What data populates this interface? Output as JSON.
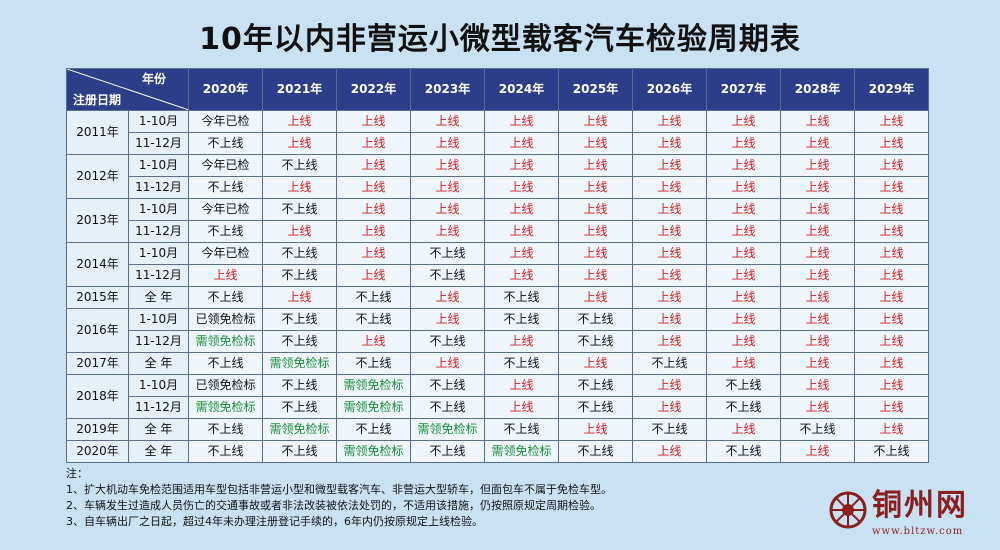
{
  "title": "10年以内非营运小微型载客汽车检验周期表",
  "corner": {
    "top": "年份",
    "bottom": "注册日期"
  },
  "years": [
    "2020年",
    "2021年",
    "2022年",
    "2023年",
    "2024年",
    "2025年",
    "2026年",
    "2027年",
    "2028年",
    "2029年"
  ],
  "rows": [
    {
      "year": "2011年",
      "month": "1-10月",
      "cells": [
        "今年已检",
        "上线",
        "上线",
        "上线",
        "上线",
        "上线",
        "上线",
        "上线",
        "上线",
        "上线"
      ],
      "colors": [
        "k",
        "r",
        "r",
        "r",
        "r",
        "r",
        "r",
        "r",
        "r",
        "r"
      ]
    },
    {
      "year": "",
      "month": "11-12月",
      "cells": [
        "不上线",
        "上线",
        "上线",
        "上线",
        "上线",
        "上线",
        "上线",
        "上线",
        "上线",
        "上线"
      ],
      "colors": [
        "k",
        "r",
        "r",
        "r",
        "r",
        "r",
        "r",
        "r",
        "r",
        "r"
      ]
    },
    {
      "year": "2012年",
      "month": "1-10月",
      "cells": [
        "今年已检",
        "不上线",
        "上线",
        "上线",
        "上线",
        "上线",
        "上线",
        "上线",
        "上线",
        "上线"
      ],
      "colors": [
        "k",
        "k",
        "r",
        "r",
        "r",
        "r",
        "r",
        "r",
        "r",
        "r"
      ]
    },
    {
      "year": "",
      "month": "11-12月",
      "cells": [
        "不上线",
        "上线",
        "上线",
        "上线",
        "上线",
        "上线",
        "上线",
        "上线",
        "上线",
        "上线"
      ],
      "colors": [
        "k",
        "r",
        "r",
        "r",
        "r",
        "r",
        "r",
        "r",
        "r",
        "r"
      ]
    },
    {
      "year": "2013年",
      "month": "1-10月",
      "cells": [
        "今年已检",
        "不上线",
        "上线",
        "上线",
        "上线",
        "上线",
        "上线",
        "上线",
        "上线",
        "上线"
      ],
      "colors": [
        "k",
        "k",
        "r",
        "r",
        "r",
        "r",
        "r",
        "r",
        "r",
        "r"
      ]
    },
    {
      "year": "",
      "month": "11-12月",
      "cells": [
        "不上线",
        "上线",
        "上线",
        "上线",
        "上线",
        "上线",
        "上线",
        "上线",
        "上线",
        "上线"
      ],
      "colors": [
        "k",
        "r",
        "r",
        "r",
        "r",
        "r",
        "r",
        "r",
        "r",
        "r"
      ]
    },
    {
      "year": "2014年",
      "month": "1-10月",
      "cells": [
        "今年已检",
        "不上线",
        "上线",
        "不上线",
        "上线",
        "上线",
        "上线",
        "上线",
        "上线",
        "上线"
      ],
      "colors": [
        "k",
        "k",
        "r",
        "k",
        "r",
        "r",
        "r",
        "r",
        "r",
        "r"
      ]
    },
    {
      "year": "",
      "month": "11-12月",
      "cells": [
        "上线",
        "不上线",
        "上线",
        "不上线",
        "上线",
        "上线",
        "上线",
        "上线",
        "上线",
        "上线"
      ],
      "colors": [
        "r",
        "k",
        "r",
        "k",
        "r",
        "r",
        "r",
        "r",
        "r",
        "r"
      ]
    },
    {
      "year": "2015年",
      "month": "全 年",
      "cells": [
        "不上线",
        "上线",
        "不上线",
        "上线",
        "不上线",
        "上线",
        "上线",
        "上线",
        "上线",
        "上线"
      ],
      "colors": [
        "k",
        "r",
        "k",
        "r",
        "k",
        "r",
        "r",
        "r",
        "r",
        "r"
      ]
    },
    {
      "year": "2016年",
      "month": "1-10月",
      "cells": [
        "已领免检标",
        "不上线",
        "不上线",
        "上线",
        "不上线",
        "不上线",
        "上线",
        "上线",
        "上线",
        "上线"
      ],
      "colors": [
        "k",
        "k",
        "k",
        "r",
        "k",
        "k",
        "r",
        "r",
        "r",
        "r"
      ]
    },
    {
      "year": "",
      "month": "11-12月",
      "cells": [
        "需领免检标",
        "不上线",
        "上线",
        "不上线",
        "上线",
        "不上线",
        "上线",
        "上线",
        "上线",
        "上线"
      ],
      "colors": [
        "g",
        "k",
        "r",
        "k",
        "r",
        "k",
        "r",
        "r",
        "r",
        "r"
      ]
    },
    {
      "year": "2017年",
      "month": "全 年",
      "cells": [
        "不上线",
        "需领免检标",
        "不上线",
        "上线",
        "不上线",
        "上线",
        "不上线",
        "上线",
        "上线",
        "上线"
      ],
      "colors": [
        "k",
        "g",
        "k",
        "r",
        "k",
        "r",
        "k",
        "r",
        "r",
        "r"
      ]
    },
    {
      "year": "2018年",
      "month": "1-10月",
      "cells": [
        "已领免检标",
        "不上线",
        "需领免检标",
        "不上线",
        "上线",
        "不上线",
        "上线",
        "不上线",
        "上线",
        "上线"
      ],
      "colors": [
        "k",
        "k",
        "g",
        "k",
        "r",
        "k",
        "r",
        "k",
        "r",
        "r"
      ]
    },
    {
      "year": "",
      "month": "11-12月",
      "cells": [
        "需领免检标",
        "不上线",
        "需领免检标",
        "不上线",
        "上线",
        "不上线",
        "上线",
        "不上线",
        "上线",
        "上线"
      ],
      "colors": [
        "g",
        "k",
        "g",
        "k",
        "r",
        "k",
        "r",
        "k",
        "r",
        "r"
      ]
    },
    {
      "year": "2019年",
      "month": "全 年",
      "cells": [
        "不上线",
        "需领免检标",
        "不上线",
        "需领免检标",
        "不上线",
        "上线",
        "不上线",
        "上线",
        "不上线",
        "上线"
      ],
      "colors": [
        "k",
        "g",
        "k",
        "g",
        "k",
        "r",
        "k",
        "r",
        "k",
        "r"
      ]
    },
    {
      "year": "2020年",
      "month": "全 年",
      "cells": [
        "不上线",
        "不上线",
        "需领免检标",
        "不上线",
        "需领免检标",
        "不上线",
        "上线",
        "不上线",
        "上线",
        "不上线"
      ],
      "colors": [
        "k",
        "k",
        "g",
        "k",
        "g",
        "k",
        "r",
        "k",
        "r",
        "k"
      ]
    }
  ],
  "notes": [
    "注：",
    "1、扩大机动车免检范围适用车型包括非营运小型和微型载客汽车、非营运大型轿车，但面包车不属于免检车型。",
    "2、车辆发生过造成人员伤亡的交通事故或者非法改装被依法处罚的，不适用该措施，仍按照原规定周期检验。",
    "3、自车辆出厂之日起，超过4年未办理注册登记手续的，6年内仍按原规定上线检验。"
  ],
  "logo": {
    "name": "铜州网",
    "url": "www.bltzw.com"
  },
  "colors": {
    "header_bg": "#2c3d8a",
    "red": "#d62020",
    "green": "#1b8f3a",
    "background": "#c9e2f3"
  }
}
